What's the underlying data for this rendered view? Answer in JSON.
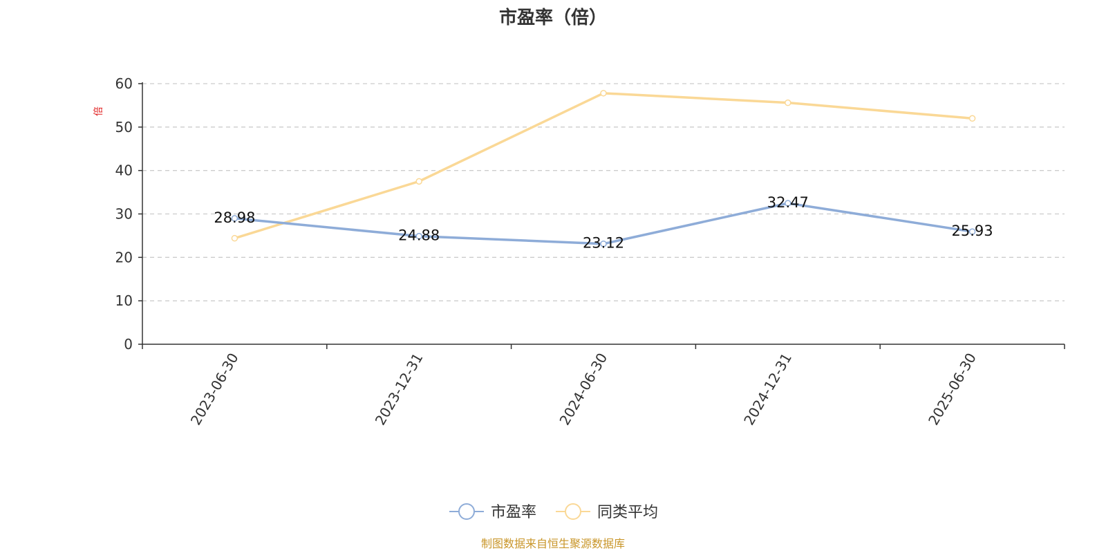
{
  "chart_data": {
    "type": "line",
    "title": "市盈率（倍）",
    "ylabel": "倍",
    "categories": [
      "2023-06-30",
      "2023-12-31",
      "2024-06-30",
      "2024-12-31",
      "2025-06-30"
    ],
    "ylim": [
      0,
      60
    ],
    "yticks": [
      0,
      10,
      20,
      30,
      40,
      50,
      60
    ],
    "grid": true,
    "legend_position": "bottom",
    "series": [
      {
        "name": "市盈率",
        "values": [
          28.98,
          24.88,
          23.12,
          32.47,
          25.93
        ],
        "color": "#8eacd8",
        "show_labels": true
      },
      {
        "name": "同类平均",
        "values": [
          24.4,
          37.5,
          57.8,
          55.6,
          52.0
        ],
        "color": "#fad896",
        "show_labels": false
      }
    ]
  },
  "footer": {
    "text": "制图数据来自恒生聚源数据库",
    "color": "#c9962a"
  },
  "colors": {
    "unit_label": "#e02020",
    "axis": "#333333",
    "grid": "#cccccc"
  }
}
